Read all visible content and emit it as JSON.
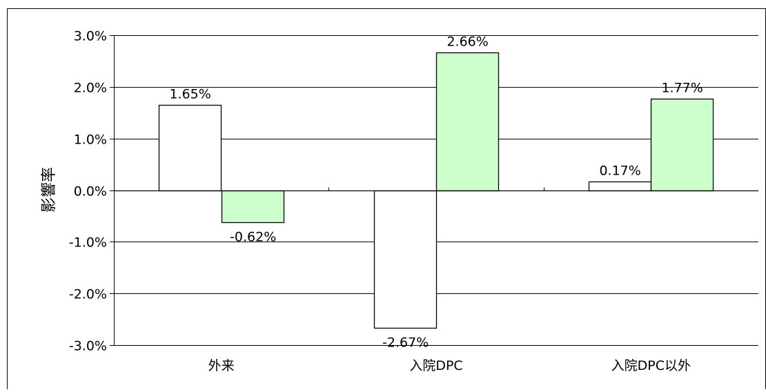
{
  "chart_data": {
    "type": "bar",
    "title": "",
    "xlabel": "",
    "ylabel": "影響率",
    "categories": [
      "外来",
      "入院DPC",
      "入院DPC以外"
    ],
    "series": [
      {
        "values": [
          1.65,
          -2.67,
          0.17
        ],
        "labels": [
          "1.65%",
          "-2.67%",
          "0.17%"
        ],
        "color": "#ffffff"
      },
      {
        "values": [
          -0.62,
          2.66,
          1.77
        ],
        "labels": [
          "-0.62%",
          "2.66%",
          "1.77%"
        ],
        "color": "#ccffcc"
      }
    ],
    "ylim": [
      -3.0,
      3.0
    ],
    "yticks": [
      3.0,
      2.0,
      1.0,
      0.0,
      -1.0,
      -2.0,
      -3.0
    ],
    "ytick_labels": [
      "3.0%",
      "2.0%",
      "1.0%",
      "0.0%",
      "-1.0%",
      "-2.0%",
      "-3.0%"
    ],
    "grid": true,
    "legend": "none"
  }
}
